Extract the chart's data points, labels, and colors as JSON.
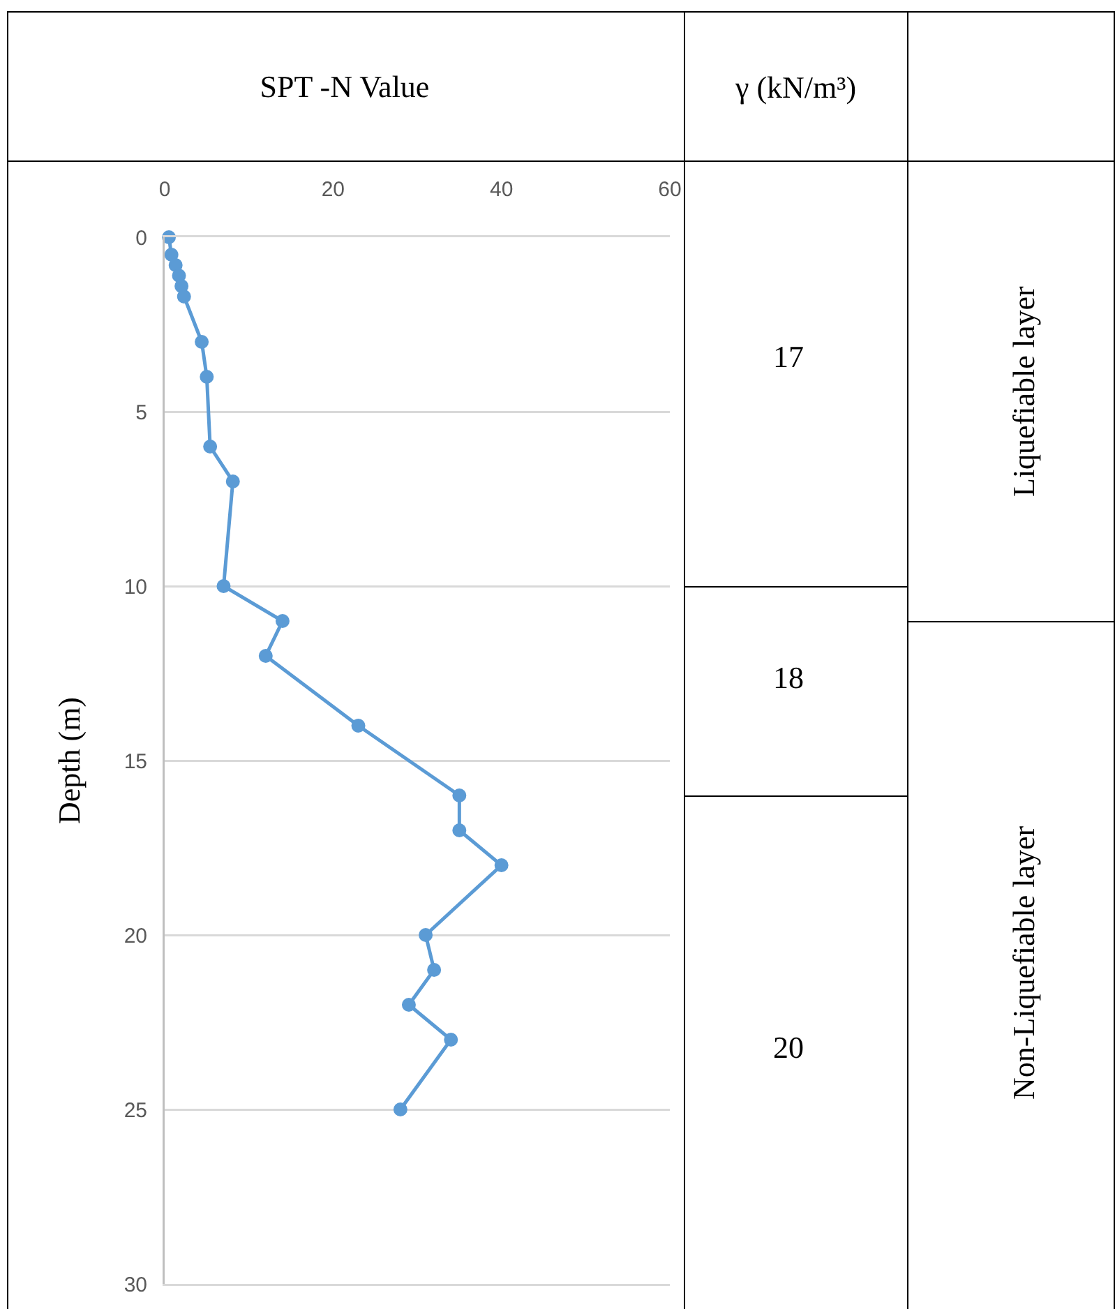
{
  "chart_data": {
    "type": "line",
    "title": "SPT -N Value",
    "ylabel": "Depth (m)",
    "x": [
      0.5,
      0.8,
      1.3,
      1.7,
      2,
      2.3,
      4.4,
      5,
      5.4,
      8.1,
      7,
      14,
      12,
      23,
      35,
      35,
      40,
      31,
      32,
      29,
      34,
      28
    ],
    "series": [
      {
        "color": "#5b9bd5",
        "values": [
          0,
          0.5,
          0.8,
          1.1,
          1.4,
          1.7,
          3,
          4,
          6,
          7,
          10,
          11,
          12,
          14,
          16,
          17,
          18,
          20,
          21,
          22,
          23,
          25
        ]
      }
    ],
    "xlim": [
      0,
      60
    ],
    "xticks": [
      0,
      20,
      40,
      60
    ],
    "ylim": [
      30,
      0
    ],
    "yticks": [
      0,
      5,
      10,
      15,
      20,
      25,
      30
    ],
    "grid": "y",
    "marker": "circle",
    "line_style": "solid",
    "annotations": [
      "γ (kN/m³)",
      "17",
      "18",
      "20",
      "Liquefiable layer",
      "Non-Liquefiable layer"
    ]
  }
}
